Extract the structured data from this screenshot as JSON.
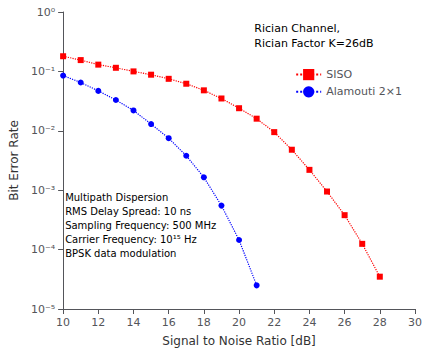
{
  "chart_data": {
    "type": "line",
    "xlabel": "Signal to Noise Ratio [dB]",
    "ylabel": "Bit Error Rate",
    "log": "y",
    "grid": false,
    "legend": "upper right",
    "xlim": [
      10,
      30
    ],
    "xticks": [
      10,
      12,
      14,
      16,
      18,
      20,
      22,
      24,
      26,
      28,
      30
    ],
    "ylim": [
      1e-05,
      1
    ],
    "yticks": [
      {
        "value": 1e-05,
        "label": "10⁻⁵"
      },
      {
        "value": 0.0001,
        "label": "10⁻⁴"
      },
      {
        "value": 0.001,
        "label": "10⁻³"
      },
      {
        "value": 0.01,
        "label": "10⁻²"
      },
      {
        "value": 0.1,
        "label": "10⁻¹"
      },
      {
        "value": 1,
        "label": "10⁰"
      }
    ],
    "series": [
      {
        "name": "SISO",
        "color": "#FF0000",
        "marker": "square",
        "line_style": "dotted",
        "x": [
          10,
          11,
          12,
          13,
          14,
          15,
          16,
          17,
          18,
          19,
          20,
          21,
          22,
          23,
          24,
          25,
          26,
          27,
          28
        ],
        "values": [
          0.18,
          0.155,
          0.13,
          0.115,
          0.1,
          0.088,
          0.075,
          0.062,
          0.048,
          0.035,
          0.024,
          0.016,
          0.0095,
          0.0048,
          0.0022,
          0.00095,
          0.00038,
          0.000125,
          3.5e-05
        ]
      },
      {
        "name": "Alamouti 2×1",
        "color": "#0000FF",
        "marker": "circle",
        "line_style": "dotted",
        "x": [
          10,
          11,
          12,
          13,
          14,
          15,
          16,
          17,
          18,
          19,
          20,
          21
        ],
        "values": [
          0.085,
          0.065,
          0.047,
          0.033,
          0.022,
          0.013,
          0.0075,
          0.0038,
          0.00165,
          0.00055,
          0.000145,
          2.5e-05
        ]
      }
    ],
    "annotations": [
      "Rician Channel,\nRician Factor K=26dB",
      "Multipath Dispersion\nRMS Delay Spread: 10 ns\nSampling Frequency: 500 MHz\nCarrier Frequency: 10¹⁵ Hz\nBPSK data modulation"
    ]
  }
}
